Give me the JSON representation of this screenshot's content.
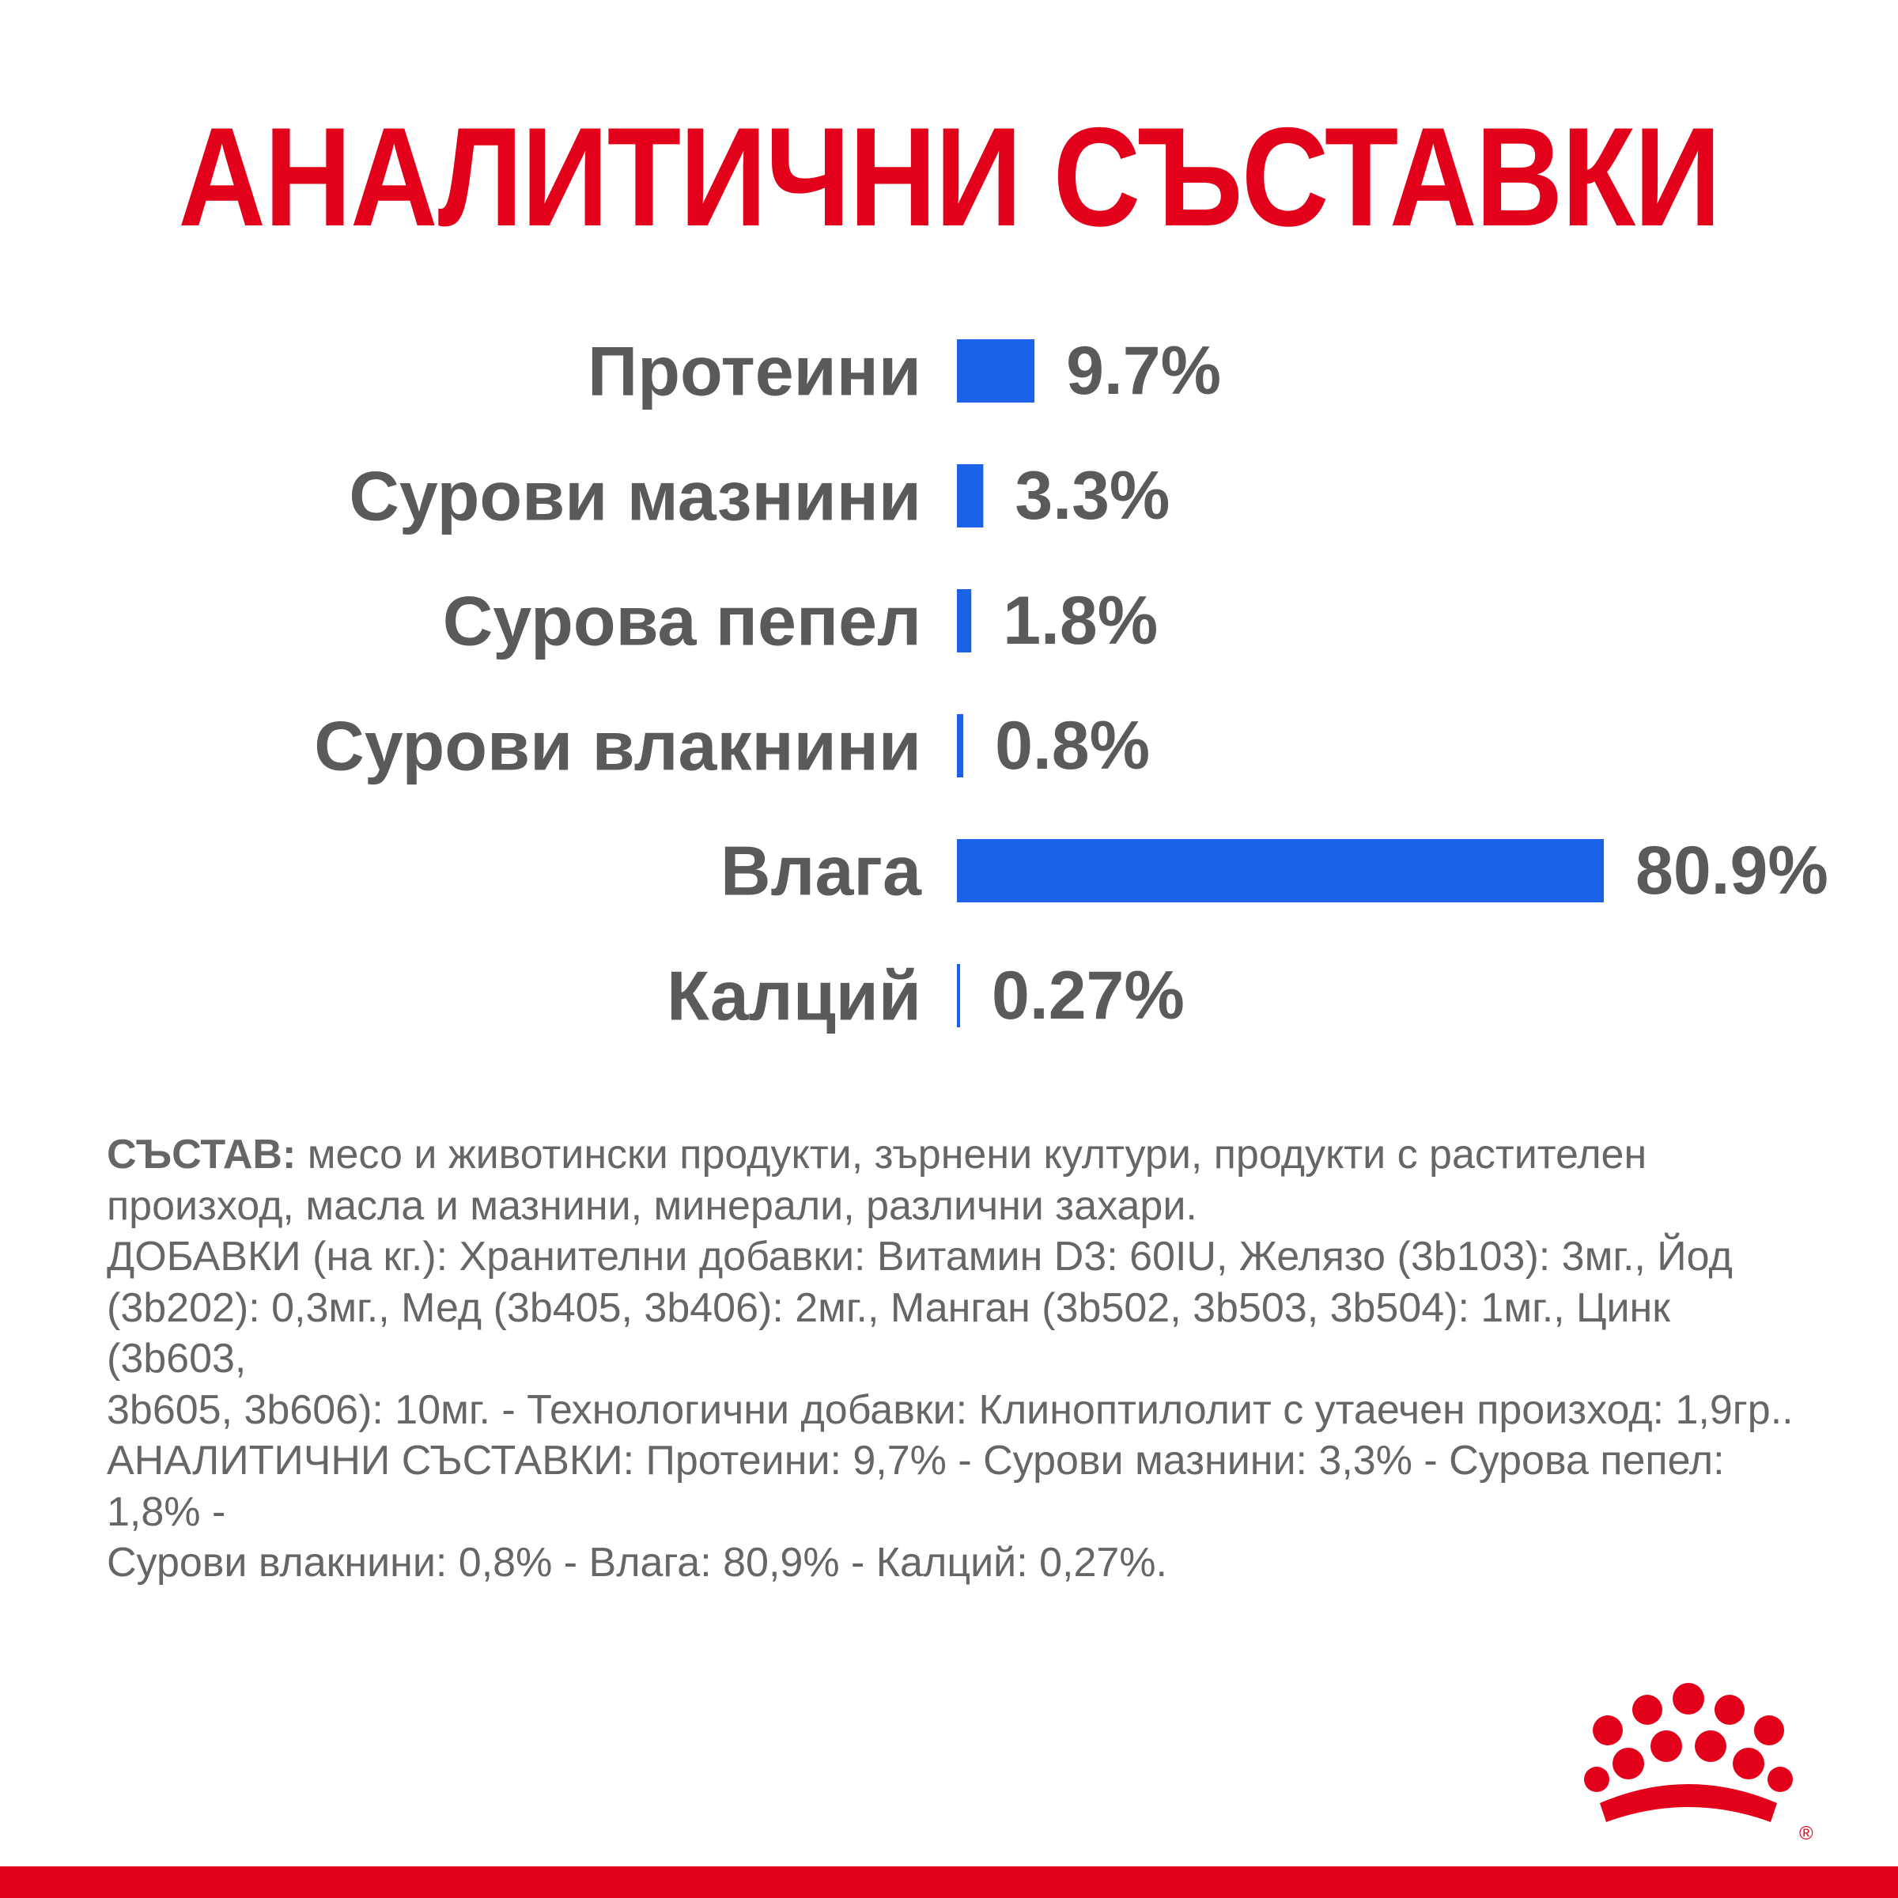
{
  "colors": {
    "title": "#e2001a",
    "bar": "#1a62e8",
    "label": "#5a5a5a",
    "text": "#666666",
    "logo": "#e2001a",
    "bottom_bar": "#e2001a"
  },
  "chart_data": {
    "type": "bar",
    "orientation": "horizontal",
    "title": "АНАЛИТИЧНИ СЪСТАВКИ",
    "categories": [
      "Протеини",
      "Сурови мазнини",
      "Сурова пепел",
      "Сурови влакнини",
      "Влага",
      "Калций"
    ],
    "values": [
      9.7,
      3.3,
      1.8,
      0.8,
      80.9,
      0.27
    ],
    "value_labels": [
      "9.7%",
      "3.3%",
      "1.8%",
      "0.8%",
      "80.9%",
      "0.27%"
    ],
    "xlim": [
      0,
      80.9
    ],
    "grid": false,
    "legend": "none"
  },
  "composition": {
    "heading": "СЪСТАВ:",
    "line1_rest": " месо и животински продукти, зърнени култури, продукти с растителен",
    "line2": "произход, масла и мазнини, минерали, различни захари.",
    "line3": "ДОБАВКИ (на кг.): Хранителни добавки: Витамин D3: 60IU, Желязо (3b103): 3мг., Йод",
    "line4": "(3b202): 0,3мг., Мед (3b405, 3b406): 2мг., Манган (3b502, 3b503, 3b504): 1мг., Цинк (3b603,",
    "line5": "3b605, 3b606): 10мг. - Технологични добавки: Клиноптилолит с утаечен произход: 1,9гр..",
    "line6": "АНАЛИТИЧНИ СЪСТАВКИ: Протеини: 9,7% - Сурови мазнини: 3,3% - Сурова пепел: 1,8% -",
    "line7": "Сурови влакнини: 0,8% - Влага: 80,9% - Калций: 0,27%."
  },
  "logo": {
    "trademark": "®"
  }
}
